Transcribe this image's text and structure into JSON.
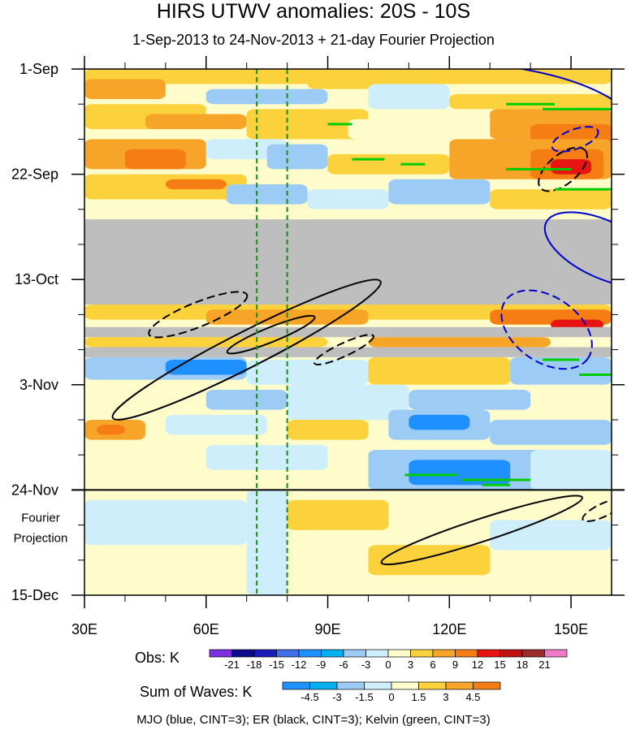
{
  "chart_data": {
    "type": "heatmap",
    "title": "HIRS UTWV anomalies: 20S - 10S",
    "subtitle": "1-Sep-2013 to 24-Nov-2013 + 21-day Fourier Projection",
    "x_ticks": [
      {
        "value": 30,
        "label": "30E"
      },
      {
        "value": 60,
        "label": "60E"
      },
      {
        "value": 90,
        "label": "90E"
      },
      {
        "value": 120,
        "label": "120E"
      },
      {
        "value": 150,
        "label": "150E"
      }
    ],
    "xlim": [
      30,
      160
    ],
    "y_ticks": [
      {
        "day": 0,
        "label": "1-Sep"
      },
      {
        "day": 21,
        "label": "22-Sep"
      },
      {
        "day": 42,
        "label": "13-Oct"
      },
      {
        "day": 63,
        "label": "3-Nov"
      },
      {
        "day": 84,
        "label": "24-Nov"
      },
      {
        "day": 105,
        "label": "15-Dec"
      }
    ],
    "ylim_days": [
      0,
      105
    ],
    "projection_start_day": 84,
    "projection_label": [
      "Fourier",
      "Projection"
    ],
    "reference_lon_lines": [
      72.5,
      80
    ],
    "missing_bands_days": [
      [
        30,
        47
      ],
      [
        51.5,
        53.5
      ],
      [
        55.5,
        57.5
      ]
    ],
    "obs_colorbar": {
      "label": "Obs: K",
      "levels": [
        "-21",
        "-18",
        "-15",
        "-12",
        "-9",
        "-6",
        "-3",
        "0",
        "3",
        "6",
        "9",
        "12",
        "15",
        "18",
        "21"
      ],
      "colors": [
        "#7b2fe0",
        "#0d0d8c",
        "#1a1ab8",
        "#3e6ee8",
        "#1e90ff",
        "#00b0f0",
        "#9ccbf5",
        "#cdeefa",
        "#fffccc",
        "#fcd23c",
        "#f7a528",
        "#f57d14",
        "#e81414",
        "#c01010",
        "#9c2a2a",
        "#f07ac8"
      ]
    },
    "waves_colorbar": {
      "label": "Sum of Waves: K",
      "levels": [
        "-4.5",
        "-3",
        "-1.5",
        "0",
        "1.5",
        "3",
        "4.5"
      ],
      "colors": [
        "#1e90ff",
        "#00b0f0",
        "#9ccbf5",
        "#cdeefa",
        "#fffccc",
        "#fcd23c",
        "#f7a528",
        "#f57d14"
      ]
    },
    "legend": "MJO (blue, CINT=3); ER (black, CINT=3); Kelvin (green, CINT=3)",
    "contour_colors": {
      "MJO": "#0000cc",
      "ER": "#000000",
      "Kelvin": "#00cc00"
    }
  }
}
